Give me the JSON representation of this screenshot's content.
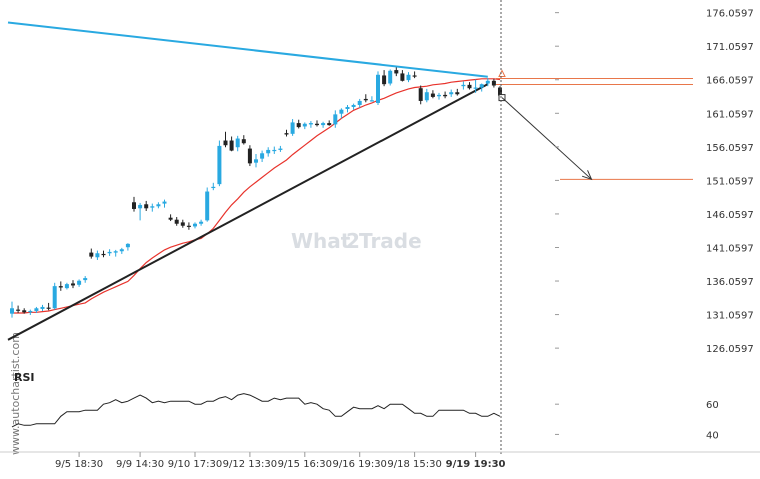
{
  "chart_data": {
    "type": "candlestick",
    "instrument_quote_type": "price",
    "y_ticks": [
      "176.0597",
      "171.0597",
      "166.0597",
      "161.0597",
      "156.0597",
      "151.0597",
      "146.0597",
      "141.0597",
      "136.0597",
      "131.0597",
      "126.0597"
    ],
    "ylim": [
      122.8,
      177.2
    ],
    "x_ticks": [
      "9/5 18:30",
      "9/9 14:30",
      "9/10 17:30",
      "9/12 13:30",
      "9/15 16:30",
      "9/16 19:30",
      "9/18 15:30",
      "9/19 19:30"
    ],
    "x_tick_index": [
      11,
      21,
      30,
      39,
      48,
      57,
      66,
      76
    ],
    "highlighted_x_tick": "9/19 19:30",
    "candles": [
      [
        131.2,
        133.0,
        130.6,
        132.0
      ],
      [
        131.8,
        132.4,
        131.3,
        131.7
      ],
      [
        131.7,
        132.0,
        131.2,
        131.4
      ],
      [
        131.4,
        131.8,
        131.0,
        131.6
      ],
      [
        131.6,
        132.2,
        131.3,
        132.0
      ],
      [
        131.9,
        132.5,
        131.6,
        132.2
      ],
      [
        132.1,
        132.8,
        131.7,
        132.0
      ],
      [
        132.0,
        135.8,
        131.8,
        135.3
      ],
      [
        135.3,
        136.0,
        134.6,
        135.1
      ],
      [
        135.0,
        135.8,
        134.8,
        135.6
      ],
      [
        135.7,
        136.2,
        135.0,
        135.4
      ],
      [
        135.5,
        136.3,
        135.2,
        136.1
      ],
      [
        136.2,
        136.8,
        135.8,
        136.5
      ],
      [
        140.3,
        140.9,
        139.4,
        139.7
      ],
      [
        139.6,
        140.6,
        139.2,
        140.2
      ],
      [
        140.1,
        140.6,
        139.6,
        140.0
      ],
      [
        140.2,
        140.8,
        139.8,
        140.4
      ],
      [
        140.3,
        140.7,
        139.7,
        140.5
      ],
      [
        140.5,
        141.0,
        140.1,
        140.8
      ],
      [
        141.1,
        141.7,
        140.6,
        141.6
      ],
      [
        147.8,
        148.6,
        146.4,
        146.8
      ],
      [
        146.9,
        147.7,
        145.1,
        147.4
      ],
      [
        147.5,
        148.0,
        146.5,
        146.9
      ],
      [
        147.0,
        147.6,
        146.4,
        147.2
      ],
      [
        147.2,
        147.8,
        146.9,
        147.5
      ],
      [
        147.6,
        148.2,
        147.0,
        147.9
      ],
      [
        145.5,
        146.0,
        145.0,
        145.2
      ],
      [
        145.2,
        145.6,
        144.3,
        144.6
      ],
      [
        144.8,
        145.2,
        144.0,
        144.3
      ],
      [
        144.3,
        144.8,
        143.7,
        144.2
      ],
      [
        144.2,
        144.8,
        143.9,
        144.6
      ],
      [
        144.6,
        145.2,
        144.3,
        144.9
      ],
      [
        145.1,
        150.0,
        144.9,
        149.4
      ],
      [
        150.0,
        150.7,
        149.6,
        150.1
      ],
      [
        150.5,
        157.0,
        150.2,
        156.2
      ],
      [
        157.0,
        158.3,
        156.0,
        156.3
      ],
      [
        157.0,
        157.6,
        155.4,
        155.5
      ],
      [
        156.0,
        157.7,
        155.4,
        157.3
      ],
      [
        157.2,
        157.8,
        156.4,
        156.6
      ],
      [
        155.8,
        156.3,
        153.2,
        153.6
      ],
      [
        153.7,
        155.0,
        153.0,
        154.2
      ],
      [
        154.3,
        155.5,
        153.8,
        155.1
      ],
      [
        155.1,
        156.0,
        154.6,
        155.6
      ],
      [
        155.6,
        156.1,
        155.0,
        155.6
      ],
      [
        155.6,
        156.2,
        155.3,
        155.8
      ],
      [
        158.1,
        158.6,
        157.6,
        157.9
      ],
      [
        158.0,
        160.2,
        157.7,
        159.7
      ],
      [
        159.6,
        160.1,
        158.8,
        159.0
      ],
      [
        159.1,
        159.7,
        158.7,
        159.5
      ],
      [
        159.4,
        159.9,
        158.9,
        159.6
      ],
      [
        159.5,
        160.0,
        159.1,
        159.3
      ],
      [
        159.3,
        159.8,
        158.9,
        159.6
      ],
      [
        159.6,
        160.0,
        159.2,
        159.3
      ],
      [
        159.4,
        161.5,
        158.9,
        160.9
      ],
      [
        161.0,
        161.8,
        160.3,
        161.6
      ],
      [
        161.7,
        162.3,
        161.2,
        162.0
      ],
      [
        162.0,
        162.5,
        161.6,
        162.3
      ],
      [
        162.3,
        163.2,
        161.9,
        162.9
      ],
      [
        163.2,
        163.9,
        162.7,
        163.0
      ],
      [
        163.0,
        163.6,
        162.8,
        163.0
      ],
      [
        162.6,
        167.3,
        162.3,
        166.8
      ],
      [
        166.7,
        167.5,
        165.1,
        165.4
      ],
      [
        165.5,
        167.6,
        165.2,
        167.4
      ],
      [
        167.5,
        167.9,
        166.6,
        167.0
      ],
      [
        167.0,
        167.5,
        165.8,
        165.9
      ],
      [
        166.0,
        167.2,
        165.7,
        166.8
      ],
      [
        166.7,
        167.3,
        166.3,
        166.6
      ],
      [
        164.8,
        165.2,
        162.4,
        162.9
      ],
      [
        163.0,
        164.7,
        162.7,
        164.2
      ],
      [
        164.0,
        164.5,
        163.3,
        163.5
      ],
      [
        163.6,
        164.1,
        163.1,
        163.8
      ],
      [
        163.8,
        164.3,
        163.3,
        163.6
      ],
      [
        163.9,
        164.6,
        163.5,
        164.2
      ],
      [
        164.2,
        164.7,
        163.7,
        163.9
      ],
      [
        165.1,
        165.8,
        164.6,
        165.3
      ],
      [
        165.3,
        165.7,
        164.6,
        164.8
      ],
      [
        164.9,
        166.1,
        164.1,
        164.9
      ],
      [
        164.9,
        165.5,
        164.3,
        165.4
      ],
      [
        165.5,
        166.3,
        165.1,
        165.9
      ],
      [
        165.9,
        166.2,
        164.9,
        165.2
      ],
      [
        164.9,
        165.1,
        163.4,
        163.7
      ]
    ],
    "moving_average": [
      131.3,
      131.3,
      131.3,
      131.4,
      131.4,
      131.5,
      131.6,
      131.8,
      132.0,
      132.2,
      132.4,
      132.6,
      132.8,
      133.4,
      133.9,
      134.4,
      134.8,
      135.2,
      135.6,
      136.0,
      136.9,
      137.9,
      138.8,
      139.5,
      140.1,
      140.7,
      141.1,
      141.4,
      141.7,
      141.9,
      142.2,
      142.4,
      143.1,
      143.9,
      145.1,
      146.3,
      147.4,
      148.3,
      149.3,
      150.1,
      150.8,
      151.5,
      152.2,
      152.9,
      153.5,
      154.1,
      154.9,
      155.6,
      156.3,
      157.0,
      157.7,
      158.3,
      158.9,
      159.6,
      160.3,
      160.9,
      161.5,
      161.9,
      162.3,
      162.6,
      163.0,
      163.3,
      163.7,
      164.1,
      164.4,
      164.7,
      164.9,
      165.0,
      165.1,
      165.3,
      165.4,
      165.5,
      165.7,
      165.8,
      165.9,
      166.0,
      166.1,
      166.2,
      166.2,
      166.2,
      166.1
    ],
    "trendlines": {
      "resistance": {
        "color": "#29a9e1",
        "from": [
          0,
          174.6
        ],
        "to": [
          78,
          166.5
        ]
      },
      "support": {
        "color": "#222222",
        "from": [
          0,
          127.3
        ],
        "to": [
          78,
          165.4
        ]
      }
    },
    "horizontal_levels": [
      {
        "value": 166.25,
        "color": "#e8764a"
      },
      {
        "value": 165.35,
        "color": "#e8764a"
      },
      {
        "value": 151.22,
        "color": "#e8764a"
      }
    ],
    "projection_arrow": {
      "from": [
        80,
        163.4
      ],
      "to": [
        95,
        151.22
      ],
      "color": "#333333"
    },
    "current_time_marker_index": 80,
    "colors": {
      "bull": "#29a9e1",
      "bear": "#222222",
      "ma": "#e8332c",
      "rsi": "#222222"
    },
    "rsi": {
      "label": "RSI",
      "y_ticks": [
        "60",
        "40"
      ],
      "ylim": [
        33,
        76
      ],
      "values": [
        45,
        47,
        46,
        46,
        47,
        47,
        47,
        47,
        52,
        55,
        55,
        55,
        56,
        56,
        56,
        60,
        61,
        63,
        61,
        62,
        64,
        66,
        64,
        61,
        62,
        61,
        62,
        62,
        62,
        62,
        60,
        60,
        62,
        62,
        64,
        65,
        63,
        66,
        67,
        66,
        64,
        62,
        62,
        64,
        63,
        64,
        64,
        64,
        60,
        61,
        60,
        57,
        56,
        52,
        52,
        55,
        58,
        57,
        57,
        57,
        59,
        57,
        60,
        60,
        60,
        57,
        54,
        54,
        52,
        52,
        56,
        56,
        56,
        56,
        56,
        54,
        54,
        52,
        52,
        54,
        52
      ]
    }
  },
  "watermark": {
    "brand_left": "What",
    "brand_digit": "2",
    "brand_right": "Trade",
    "vertical_source": "www.autochartist.com"
  }
}
